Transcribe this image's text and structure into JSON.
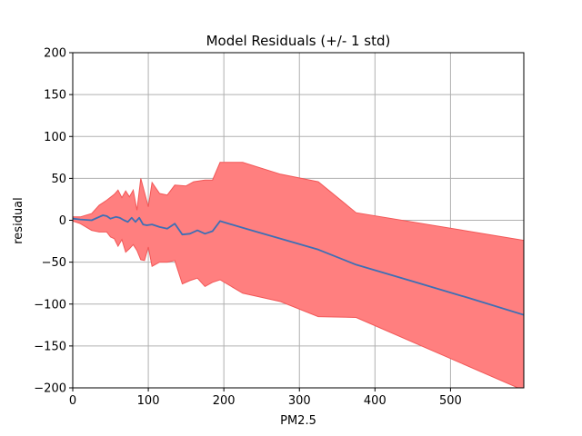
{
  "chart_data": {
    "type": "line",
    "title": "Model Residuals (+/- 1 std)",
    "xlabel": "PM2.5",
    "ylabel": "residual",
    "xlim": [
      0,
      597
    ],
    "ylim": [
      -200,
      200
    ],
    "x_ticks": [
      0,
      100,
      200,
      300,
      400,
      500
    ],
    "y_ticks": [
      200,
      150,
      100,
      50,
      0,
      -50,
      -100,
      -150,
      -200
    ],
    "x_tick_labels": [
      "0",
      "100",
      "200",
      "300",
      "400",
      "500"
    ],
    "y_tick_labels": [
      "200",
      "150",
      "100",
      "50",
      "0",
      "−50",
      "−100",
      "−150",
      "−200"
    ],
    "grid": true,
    "colors": {
      "line": "#3d6fb5",
      "band_fill": "#ff7f7f",
      "band_edge": "#f25757",
      "grid": "#b0b0b0",
      "axes": "#000000"
    },
    "series": [
      {
        "values": [
          [
            0,
            2
          ],
          [
            10,
            1
          ],
          [
            25,
            0
          ],
          [
            35,
            4
          ],
          [
            40,
            6
          ],
          [
            45,
            5
          ],
          [
            50,
            2
          ],
          [
            57,
            4
          ],
          [
            62,
            3
          ],
          [
            68,
            0
          ],
          [
            73,
            -2
          ],
          [
            78,
            3
          ],
          [
            83,
            -2
          ],
          [
            88,
            3
          ],
          [
            93,
            -5
          ],
          [
            98,
            -6
          ],
          [
            105,
            -5
          ],
          [
            115,
            -8
          ],
          [
            125,
            -10
          ],
          [
            135,
            -4
          ],
          [
            145,
            -17
          ],
          [
            155,
            -16
          ],
          [
            165,
            -12
          ],
          [
            175,
            -16
          ],
          [
            185,
            -13
          ],
          [
            195,
            -1
          ],
          [
            225,
            -9
          ],
          [
            275,
            -22
          ],
          [
            325,
            -35
          ],
          [
            375,
            -53
          ],
          [
            450,
            -73
          ],
          [
            525,
            -93
          ],
          [
            597,
            -113
          ]
        ]
      }
    ],
    "std_band": {
      "upper": [
        [
          0,
          4
        ],
        [
          10,
          4
        ],
        [
          25,
          8
        ],
        [
          35,
          18
        ],
        [
          45,
          24
        ],
        [
          55,
          31
        ],
        [
          60,
          36
        ],
        [
          65,
          27
        ],
        [
          70,
          35
        ],
        [
          75,
          28
        ],
        [
          80,
          36
        ],
        [
          85,
          12
        ],
        [
          90,
          50
        ],
        [
          100,
          16
        ],
        [
          105,
          45
        ],
        [
          115,
          32
        ],
        [
          125,
          30
        ],
        [
          135,
          42
        ],
        [
          150,
          41
        ],
        [
          160,
          46
        ],
        [
          175,
          48
        ],
        [
          185,
          48
        ],
        [
          195,
          69
        ],
        [
          225,
          69
        ],
        [
          275,
          55
        ],
        [
          325,
          46
        ],
        [
          375,
          9
        ],
        [
          597,
          -24
        ]
      ],
      "lower": [
        [
          0,
          -1
        ],
        [
          10,
          -4
        ],
        [
          25,
          -12
        ],
        [
          35,
          -14
        ],
        [
          45,
          -14
        ],
        [
          50,
          -20
        ],
        [
          55,
          -22
        ],
        [
          60,
          -31
        ],
        [
          65,
          -23
        ],
        [
          70,
          -38
        ],
        [
          75,
          -34
        ],
        [
          80,
          -29
        ],
        [
          85,
          -36
        ],
        [
          90,
          -47
        ],
        [
          95,
          -48
        ],
        [
          100,
          -32
        ],
        [
          105,
          -55
        ],
        [
          115,
          -50
        ],
        [
          125,
          -50
        ],
        [
          135,
          -48
        ],
        [
          145,
          -76
        ],
        [
          155,
          -72
        ],
        [
          165,
          -69
        ],
        [
          175,
          -79
        ],
        [
          185,
          -74
        ],
        [
          195,
          -71
        ],
        [
          225,
          -87
        ],
        [
          275,
          -97
        ],
        [
          325,
          -115
        ],
        [
          375,
          -116
        ],
        [
          597,
          -203
        ]
      ]
    }
  }
}
